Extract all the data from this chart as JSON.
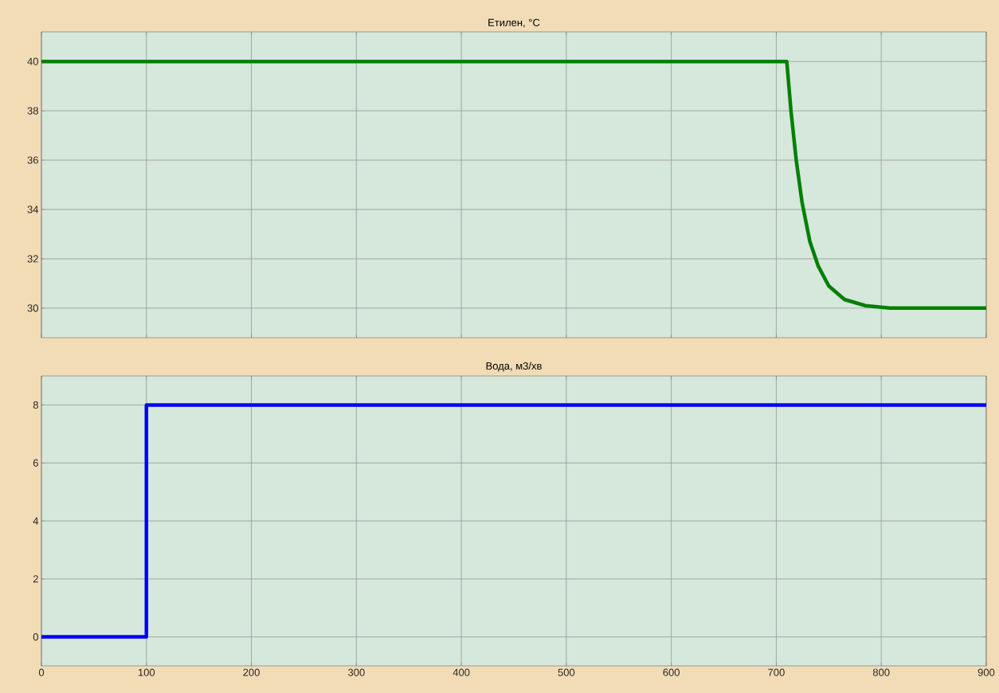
{
  "chart_data": [
    {
      "type": "line",
      "title": "Етилен, °C",
      "x": [
        0,
        710,
        714,
        719,
        724.5,
        732,
        740,
        750,
        765,
        785,
        808,
        900
      ],
      "series": [
        {
          "color": "#008000",
          "values": [
            40,
            40,
            38,
            36,
            34.3,
            32.7,
            31.7,
            30.9,
            30.35,
            30.1,
            30,
            30
          ]
        }
      ],
      "xlim": [
        0,
        900
      ],
      "ylim": [
        28.8,
        41.2
      ],
      "xticks": [
        0,
        100,
        200,
        300,
        400,
        500,
        600,
        700,
        800,
        900
      ],
      "yticks": [
        30,
        32,
        34,
        36,
        38,
        40
      ],
      "grid": true,
      "tick_labels": "y"
    },
    {
      "type": "line",
      "title": "Вода, м3/хв",
      "x": [
        0,
        100,
        100,
        900
      ],
      "series": [
        {
          "color": "#0000ff",
          "values": [
            0,
            0,
            8,
            8
          ]
        }
      ],
      "xlim": [
        0,
        900
      ],
      "ylim": [
        -1,
        9
      ],
      "xticks": [
        0,
        100,
        200,
        300,
        400,
        500,
        600,
        700,
        800,
        900
      ],
      "yticks": [
        0,
        2,
        4,
        6,
        8
      ],
      "grid": true
    }
  ]
}
